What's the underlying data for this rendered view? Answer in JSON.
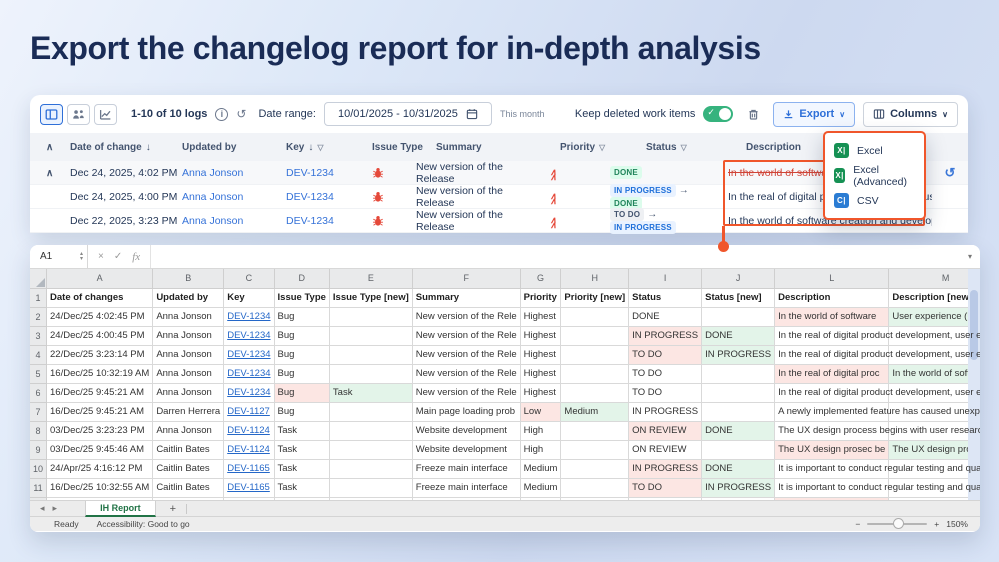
{
  "page": {
    "title": "Export the changelog report for in-depth analysis"
  },
  "toolbar": {
    "logs_count": "1-10 of 10 logs",
    "date_range_label": "Date range:",
    "date_range_value": "10/01/2025 - 10/31/2025",
    "date_range_hint": "This month",
    "keep_deleted_label": "Keep deleted work items",
    "keep_deleted_on": true,
    "export_label": "Export",
    "columns_label": "Columns"
  },
  "export_menu": {
    "items": [
      {
        "label": "Excel",
        "icon": "excel-icon",
        "icon_color": "#169154",
        "icon_text": "X"
      },
      {
        "label": "Excel (Advanced)",
        "icon": "excel-icon",
        "icon_color": "#169154",
        "icon_text": "X"
      },
      {
        "label": "CSV",
        "icon": "csv-icon",
        "icon_color": "#2b7cd3",
        "icon_text": "C"
      }
    ]
  },
  "changelog": {
    "headers": {
      "date": "Date of change",
      "updated_by": "Updated by",
      "key": "Key",
      "issue_type": "Issue Type",
      "summary": "Summary",
      "priority": "Priority",
      "status": "Status",
      "description": "Description"
    },
    "rows": [
      {
        "date": "Dec 24, 2025, 4:02 PM",
        "updated_by": "Anna Jonson",
        "key": "DEV-1234",
        "issue_type": "bug",
        "summary": "New version of the Release",
        "priority": "highest",
        "status_old": "DONE",
        "status_new": "",
        "description": "In the world of software",
        "description_removed": true,
        "restore": true
      },
      {
        "date": "Dec 24, 2025, 4:00 PM",
        "updated_by": "Anna Jonson",
        "key": "DEV-1234",
        "issue_type": "bug",
        "summary": "New version of the Release",
        "priority": "highest",
        "status_old": "IN PROGRESS",
        "status_new": "DONE",
        "description": "In the real of digital product development, user expe…",
        "description_removed": false,
        "restore": false
      },
      {
        "date": "Dec 22, 2025, 3:23 PM",
        "updated_by": "Anna Jonson",
        "key": "DEV-1234",
        "issue_type": "bug",
        "summary": "New version of the Release",
        "priority": "highest",
        "status_old": "TO DO",
        "status_new": "IN PROGRESS",
        "description": "In the world of software creation and development u…",
        "description_removed": false,
        "restore": false
      }
    ]
  },
  "spreadsheet": {
    "name_box": "A1",
    "formula_bar_value": "",
    "columns": [
      "A",
      "B",
      "C",
      "D",
      "E",
      "F",
      "G",
      "H",
      "I",
      "J",
      "L",
      "M"
    ],
    "rows": [
      {
        "n": 1,
        "cells": [
          [
            "Date of changes",
            "b"
          ],
          [
            "Updated by",
            "b"
          ],
          [
            "Key",
            "b"
          ],
          [
            "Issue Type",
            "b"
          ],
          [
            "Issue Type [new]",
            "b"
          ],
          [
            "Summary",
            "b"
          ],
          [
            "Priority",
            "b"
          ],
          [
            "Priority [new]",
            "b"
          ],
          [
            "Status",
            "b"
          ],
          [
            "Status [new]",
            "b"
          ],
          [
            "Description",
            "b"
          ],
          [
            "Description [new]",
            "b"
          ]
        ]
      },
      {
        "n": 2,
        "cells": [
          [
            "24/Dec/25 4:02:45 PM",
            ""
          ],
          [
            "Anna Jonson",
            ""
          ],
          [
            "DEV-1234",
            "link"
          ],
          [
            "Bug",
            ""
          ],
          [
            "",
            ""
          ],
          [
            "New version of the Rele",
            ""
          ],
          [
            "Highest",
            ""
          ],
          [
            "",
            ""
          ],
          [
            "DONE",
            ""
          ],
          [
            "",
            ""
          ],
          [
            "In the world of software",
            "old"
          ],
          [
            "User experience (UX) de",
            "new"
          ]
        ]
      },
      {
        "n": 3,
        "cells": [
          [
            "24/Dec/25 4:00:45 PM",
            ""
          ],
          [
            "Anna Jonson",
            ""
          ],
          [
            "DEV-1234",
            "link"
          ],
          [
            "Bug",
            ""
          ],
          [
            "",
            ""
          ],
          [
            "New version of the Rele",
            ""
          ],
          [
            "Highest",
            ""
          ],
          [
            "",
            ""
          ],
          [
            "IN PROGRESS",
            "old"
          ],
          [
            "DONE",
            "new"
          ],
          [
            "In the real of digital product development, user e",
            "spill"
          ],
          [
            "",
            ""
          ]
        ]
      },
      {
        "n": 4,
        "cells": [
          [
            "22/Dec/25 3:23:14 PM",
            ""
          ],
          [
            "Anna Jonson",
            ""
          ],
          [
            "DEV-1234",
            "link"
          ],
          [
            "Bug",
            ""
          ],
          [
            "",
            ""
          ],
          [
            "New version of the Rele",
            ""
          ],
          [
            "Highest",
            ""
          ],
          [
            "",
            ""
          ],
          [
            "TO DO",
            "old"
          ],
          [
            "IN PROGRESS",
            "new"
          ],
          [
            "In the real of digital product development, user e",
            "spill"
          ],
          [
            "",
            ""
          ]
        ]
      },
      {
        "n": 5,
        "cells": [
          [
            "16/Dec/25 10:32:19 AM",
            ""
          ],
          [
            "Anna Jonson",
            ""
          ],
          [
            "DEV-1234",
            "link"
          ],
          [
            "Bug",
            ""
          ],
          [
            "",
            ""
          ],
          [
            "New version of the Rele",
            ""
          ],
          [
            "Highest",
            ""
          ],
          [
            "",
            ""
          ],
          [
            "TO DO",
            ""
          ],
          [
            "",
            ""
          ],
          [
            "In the real of digital proc",
            "old"
          ],
          [
            "In the world of software",
            "new"
          ]
        ]
      },
      {
        "n": 6,
        "cells": [
          [
            "16/Dec/25 9:45:21 AM",
            ""
          ],
          [
            "Anna Jonson",
            ""
          ],
          [
            "DEV-1234",
            "link"
          ],
          [
            "Bug",
            "old"
          ],
          [
            "Task",
            "new"
          ],
          [
            "New version of the Rele",
            ""
          ],
          [
            "Highest",
            ""
          ],
          [
            "",
            ""
          ],
          [
            "TO DO",
            ""
          ],
          [
            "",
            ""
          ],
          [
            "In the real of digital product development, user e",
            "spill"
          ],
          [
            "",
            ""
          ]
        ]
      },
      {
        "n": 7,
        "cells": [
          [
            "16/Dec/25 9:45:21 AM",
            ""
          ],
          [
            "Darren Herrera",
            ""
          ],
          [
            "DEV-1127",
            "link"
          ],
          [
            "Bug",
            ""
          ],
          [
            "",
            ""
          ],
          [
            "Main page loading prob",
            ""
          ],
          [
            "Low",
            "old"
          ],
          [
            "Medium",
            "new"
          ],
          [
            "IN PROGRESS",
            ""
          ],
          [
            "",
            ""
          ],
          [
            "A newly implemented feature has caused unexpe",
            "spill"
          ],
          [
            "",
            ""
          ]
        ]
      },
      {
        "n": 8,
        "cells": [
          [
            "03/Dec/25 3:23:23 PM",
            ""
          ],
          [
            "Anna Jonson",
            ""
          ],
          [
            "DEV-1124",
            "link"
          ],
          [
            "Task",
            ""
          ],
          [
            "",
            ""
          ],
          [
            "Website development",
            ""
          ],
          [
            "High",
            ""
          ],
          [
            "",
            ""
          ],
          [
            "ON REVIEW",
            "old"
          ],
          [
            "DONE",
            "new"
          ],
          [
            "The UX design process begins with user research,",
            "spill"
          ],
          [
            "",
            ""
          ]
        ]
      },
      {
        "n": 9,
        "cells": [
          [
            "03/Dec/25 9:45:46 AM",
            ""
          ],
          [
            "Caitlin Bates",
            ""
          ],
          [
            "DEV-1124",
            "link"
          ],
          [
            "Task",
            ""
          ],
          [
            "",
            ""
          ],
          [
            "Website development",
            ""
          ],
          [
            "High",
            ""
          ],
          [
            "",
            ""
          ],
          [
            "ON REVIEW",
            ""
          ],
          [
            "",
            ""
          ],
          [
            "The UX design prosec be",
            "old"
          ],
          [
            "The UX design process b",
            "new"
          ]
        ]
      },
      {
        "n": 10,
        "cells": [
          [
            "24/Apr/25 4:16:12 PM",
            ""
          ],
          [
            "Caitlin Bates",
            ""
          ],
          [
            "DEV-1165",
            "link"
          ],
          [
            "Task",
            ""
          ],
          [
            "",
            ""
          ],
          [
            "Freeze main interface",
            ""
          ],
          [
            "Medium",
            ""
          ],
          [
            "",
            ""
          ],
          [
            "IN PROGRESS",
            "old"
          ],
          [
            "DONE",
            "new"
          ],
          [
            "It is important to conduct regular testing and qua",
            "spill"
          ],
          [
            "",
            ""
          ]
        ]
      },
      {
        "n": 11,
        "cells": [
          [
            "16/Dec/25 10:32:55 AM",
            ""
          ],
          [
            "Caitlin Bates",
            ""
          ],
          [
            "DEV-1165",
            "link"
          ],
          [
            "Task",
            ""
          ],
          [
            "",
            ""
          ],
          [
            "Freeze main interface",
            ""
          ],
          [
            "Medium",
            ""
          ],
          [
            "",
            ""
          ],
          [
            "TO DO",
            "old"
          ],
          [
            "IN PROGRESS",
            "new"
          ],
          [
            "It is important to conduct regular testing and qua",
            "spill"
          ],
          [
            "",
            ""
          ]
        ]
      },
      {
        "n": 12,
        "cells": [
          [
            "",
            ""
          ],
          [
            "",
            ""
          ],
          [
            "",
            ""
          ],
          [
            "",
            ""
          ],
          [
            "",
            ""
          ],
          [
            "",
            ""
          ],
          [
            "",
            ""
          ],
          [
            "",
            ""
          ],
          [
            "",
            ""
          ],
          [
            "",
            ""
          ],
          [
            "",
            "old"
          ],
          [
            "",
            ""
          ]
        ]
      }
    ],
    "sheet_tab": "IH Report",
    "status_ready": "Ready",
    "status_accessibility": "Accessibility: Good to go",
    "zoom_level": "150%"
  },
  "colors": {
    "accent_orange": "#f0562b",
    "link_blue": "#3572d8",
    "toggle_green": "#36b37e",
    "excel_green": "#169154",
    "csv_blue": "#2b7cd3",
    "removed_red": "#d04437",
    "badge_done": "#1f845a",
    "badge_in_progress": "#1e6fd9",
    "sheet_old_bg": "#fce6e3",
    "sheet_new_bg": "#e3f4e9"
  }
}
